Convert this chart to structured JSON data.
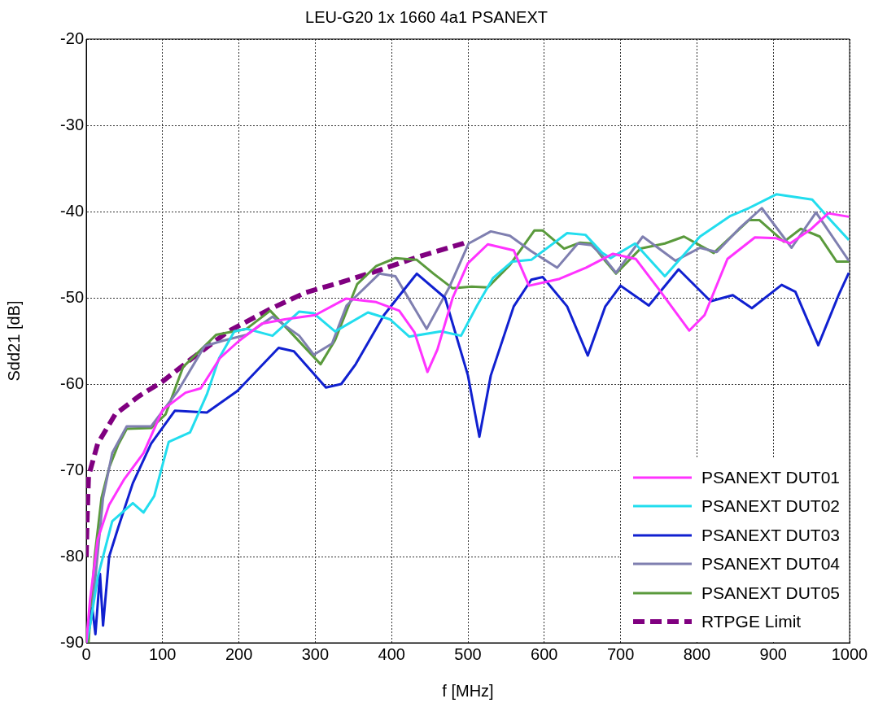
{
  "chart_data": {
    "type": "line",
    "title": "LEU-G20 1x 1660 4a1 PSANEXT",
    "xlabel": "f [MHz]",
    "ylabel": "Sdd21 [dB]",
    "xlim": [
      0,
      1000
    ],
    "xticks": [
      0,
      100,
      200,
      300,
      400,
      500,
      600,
      700,
      800,
      900,
      1000
    ],
    "ylim": [
      -90,
      -20
    ],
    "yticks": [
      -90,
      -80,
      -70,
      -60,
      -50,
      -40,
      -30,
      -20
    ],
    "grid": true,
    "legend": "bottom right",
    "marker": "none",
    "series": [
      {
        "name": "PSANEXT DUT01",
        "color": "#ff33ff",
        "x": [
          0,
          5,
          15,
          30,
          50,
          75,
          100,
          130,
          150,
          175,
          200,
          230,
          260,
          300,
          340,
          380,
          410,
          430,
          447,
          460,
          480,
          500,
          526,
          560,
          580,
          620,
          655,
          690,
          720,
          750,
          790,
          810,
          840,
          876,
          904,
          922,
          950,
          972,
          999
        ],
        "values": [
          -90,
          -85,
          -78,
          -74,
          -71,
          -68,
          -63,
          -61,
          -60.5,
          -57,
          -55,
          -53,
          -52.5,
          -52,
          -50.1,
          -50.5,
          -51.5,
          -54,
          -58.6,
          -56,
          -50,
          -46,
          -43.8,
          -44.5,
          -48.6,
          -47.8,
          -46.5,
          -44.9,
          -45.5,
          -49,
          -53.8,
          -52,
          -45.5,
          -43,
          -43.1,
          -43.7,
          -42,
          -40.2,
          -40.6
        ]
      },
      {
        "name": "PSANEXT DUT02",
        "color": "#22ddee",
        "x": [
          0,
          5,
          15,
          34,
          61,
          75,
          89,
          108,
          136,
          158,
          174,
          194,
          210,
          244,
          279,
          298,
          326,
          369,
          398,
          423,
          465,
          491,
          512,
          533,
          558,
          583,
          630,
          654,
          676,
          687,
          719,
          758,
          804,
          844,
          868,
          904,
          951,
          975,
          999
        ],
        "values": [
          -90,
          -88,
          -82.4,
          -75.9,
          -73.8,
          -74.9,
          -73,
          -66.7,
          -65.6,
          -61.2,
          -57,
          -53.9,
          -53.6,
          -54.4,
          -51.6,
          -51.8,
          -53.9,
          -51.7,
          -52.5,
          -54.5,
          -53.9,
          -54.4,
          -50.9,
          -47.7,
          -45.8,
          -45.6,
          -42.5,
          -42.7,
          -44.8,
          -45.4,
          -43.7,
          -47.5,
          -42.9,
          -40.5,
          -39.6,
          -38,
          -38.6,
          -41,
          -43.3
        ]
      },
      {
        "name": "PSANEXT DUT03",
        "color": "#1020d0",
        "x": [
          0,
          8,
          12,
          18,
          22,
          30,
          42,
          61,
          85,
          116,
          158,
          198,
          252,
          272,
          314,
          334,
          353,
          390,
          433,
          470,
          500,
          515,
          530,
          560,
          583,
          598,
          630,
          657,
          680,
          700,
          737,
          776,
          818,
          847,
          872,
          911,
          929,
          959,
          986,
          999
        ],
        "values": [
          -90,
          -86,
          -89,
          -82,
          -88,
          -80,
          -76.6,
          -71.5,
          -66.9,
          -63.1,
          -63.3,
          -60.8,
          -55.8,
          -56.2,
          -60.4,
          -60,
          -57.7,
          -52,
          -47.2,
          -50,
          -59,
          -66.1,
          -59,
          -51,
          -47.9,
          -47.6,
          -51,
          -56.7,
          -51,
          -48.6,
          -50.9,
          -46.7,
          -50.4,
          -49.7,
          -51.2,
          -48.5,
          -49.3,
          -55.5,
          -49.6,
          -47.1
        ]
      },
      {
        "name": "PSANEXT DUT04",
        "color": "#7f7fb0",
        "x": [
          0,
          7,
          22,
          34,
          53,
          85,
          120,
          155,
          178,
          210,
          244,
          279,
          298,
          322,
          341,
          384,
          405,
          446,
          476,
          501,
          530,
          555,
          583,
          617,
          644,
          662,
          676,
          694,
          729,
          772,
          804,
          826,
          855,
          885,
          924,
          956,
          999
        ],
        "values": [
          -90,
          -87,
          -73.2,
          -68,
          -64.9,
          -64.9,
          -60.8,
          -55.6,
          -55,
          -54.3,
          -52.2,
          -54.4,
          -56.6,
          -55.3,
          -50.9,
          -47.2,
          -47.5,
          -53.6,
          -48.7,
          -43.7,
          -42.3,
          -42.8,
          -44.6,
          -46.5,
          -43.7,
          -43.9,
          -45.1,
          -47.1,
          -42.9,
          -45.7,
          -44.2,
          -44.7,
          -42,
          -39.6,
          -44.2,
          -40.1,
          -45.7
        ]
      },
      {
        "name": "PSANEXT DUT05",
        "color": "#5a9a3c",
        "x": [
          0,
          3,
          11,
          20,
          30,
          42,
          53,
          85,
          104,
          127,
          155,
          170,
          210,
          241,
          272,
          307,
          326,
          355,
          380,
          405,
          433,
          455,
          480,
          505,
          526,
          555,
          587,
          598,
          626,
          647,
          662,
          676,
          694,
          726,
          758,
          783,
          822,
          868,
          882,
          914,
          936,
          961,
          983,
          999
        ],
        "values": [
          -90,
          -90,
          -80,
          -73.2,
          -69.7,
          -67,
          -65.2,
          -65.1,
          -63.5,
          -58,
          -55.6,
          -54.3,
          -53.6,
          -51.5,
          -54.4,
          -57.7,
          -54.9,
          -48.4,
          -46.3,
          -45.4,
          -45.6,
          -47.2,
          -48.9,
          -48.7,
          -48.8,
          -46.2,
          -42.2,
          -42.2,
          -44.3,
          -43.6,
          -43.7,
          -45.3,
          -47.2,
          -44.3,
          -43.7,
          -42.9,
          -44.8,
          -41,
          -41,
          -43.5,
          -42,
          -42.9,
          -45.8,
          -45.8
        ]
      },
      {
        "name": "RTPGE Limit",
        "color": "#800080",
        "line_style": "dashed",
        "x": [
          0,
          1,
          3,
          15,
          38,
          69,
          100,
          139,
          186,
          241,
          287,
          334,
          384,
          433,
          494,
          500
        ],
        "values": [
          -80,
          -76,
          -70.7,
          -66.9,
          -63.5,
          -61.4,
          -59.7,
          -57,
          -53.9,
          -51.3,
          -49.4,
          -48.2,
          -46.8,
          -45.3,
          -43.7,
          -43.5
        ]
      }
    ]
  }
}
